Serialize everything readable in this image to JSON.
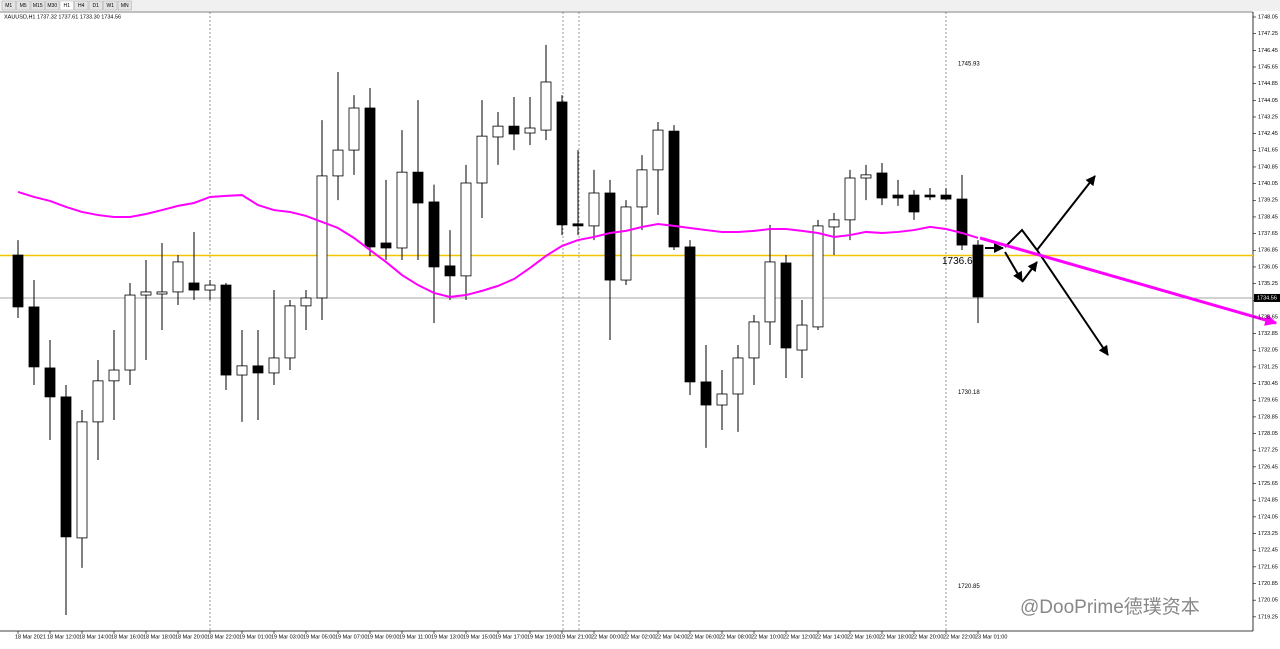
{
  "toolbar": {
    "timeframes": [
      "M1",
      "M5",
      "M15",
      "M30",
      "H1",
      "H4",
      "D1",
      "W1",
      "MN"
    ]
  },
  "header": "XAUUSD,H1  1737.32 1737.61 1733.30 1734.56",
  "watermark": "@DooPrime德璞资本",
  "chart_data": {
    "type": "candlestick",
    "categories": [
      "18 Mar 2021",
      null,
      "18 Mar 12:00",
      null,
      "18 Mar 14:00",
      null,
      "18 Mar 16:00",
      null,
      "18 Mar 18:00",
      null,
      "18 Mar 20:00",
      null,
      "18 Mar 22:00",
      null,
      "19 Mar 01:00",
      null,
      "19 Mar 03:00",
      null,
      "19 Mar 05:00",
      null,
      "19 Mar 07:00",
      null,
      "19 Mar 09:00",
      null,
      "19 Mar 11:00",
      null,
      "19 Mar 13:00",
      null,
      "19 Mar 15:00",
      null,
      "19 Mar 17:00",
      null,
      "19 Mar 19:00",
      null,
      "19 Mar 21:00",
      null,
      "22 Mar 00:00",
      null,
      "22 Mar 02:00",
      null,
      "22 Mar 04:00",
      null,
      "22 Mar 06:00",
      null,
      "22 Mar 08:00",
      null,
      "22 Mar 10:00",
      null,
      "22 Mar 12:00",
      null,
      "22 Mar 14:00",
      null,
      "22 Mar 16:00",
      null,
      "22 Mar 18:00",
      null,
      "22 Mar 20:00",
      null,
      "22 Mar 22:00",
      null,
      "23 Mar 01:00"
    ],
    "open": [
      1736.62,
      1734.13,
      1731.2,
      1729.81,
      1723.04,
      1728.61,
      1730.58,
      1731.1,
      1734.7,
      1734.75,
      1734.85,
      1735.28,
      1734.94,
      1735.18,
      1730.86,
      1731.3,
      1730.96,
      1731.68,
      1734.18,
      1734.56,
      1740.42,
      1741.66,
      1743.68,
      1737.2,
      1736.96,
      1740.6,
      1739.17,
      1736.1,
      1735.62,
      1740.08,
      1742.29,
      1742.81,
      1742.48,
      1742.62,
      1743.97,
      1738.12,
      1738.02,
      1739.6,
      1735.42,
      1738.93,
      1740.71,
      1742.57,
      1737.01,
      1730.53,
      1729.42,
      1729.95,
      1731.68,
      1733.41,
      1736.24,
      1732.06,
      1733.17,
      1737.97,
      1738.31,
      1740.32,
      1740.56,
      1739.5,
      1739.5,
      1739.5,
      1739.5,
      1739.31,
      1737.1
    ],
    "high": [
      1737.34,
      1735.42,
      1732.54,
      1730.38,
      1729.18,
      1731.58,
      1733.02,
      1735.28,
      1736.38,
      1737.2,
      1736.62,
      1737.73,
      1735.42,
      1735.28,
      1733.02,
      1733.02,
      1734.94,
      1734.46,
      1734.94,
      1743.1,
      1745.41,
      1744.3,
      1744.64,
      1740.23,
      1742.62,
      1744.06,
      1740.0,
      1737.82,
      1740.95,
      1744.06,
      1743.49,
      1744.21,
      1744.21,
      1746.71,
      1744.3,
      1741.66,
      1740.71,
      1740.23,
      1739.26,
      1741.42,
      1743.01,
      1742.86,
      1737.34,
      1732.3,
      1731.1,
      1732.3,
      1733.74,
      1738.07,
      1736.62,
      1734.46,
      1738.31,
      1738.64,
      1740.71,
      1740.95,
      1741.04,
      1740.23,
      1739.74,
      1739.84,
      1739.84,
      1740.47,
      1737.34
    ],
    "low": [
      1733.6,
      1730.38,
      1727.74,
      1719.34,
      1721.6,
      1726.78,
      1728.7,
      1730.38,
      1731.58,
      1733.02,
      1734.22,
      1734.46,
      1734.46,
      1730.14,
      1728.61,
      1728.7,
      1730.38,
      1731.1,
      1733.02,
      1733.5,
      1739.26,
      1740.47,
      1736.58,
      1736.38,
      1736.38,
      1736.38,
      1733.36,
      1734.46,
      1734.46,
      1738.4,
      1740.95,
      1741.66,
      1741.9,
      1742.14,
      1737.58,
      1737.58,
      1737.34,
      1732.54,
      1735.18,
      1737.82,
      1738.55,
      1736.86,
      1729.9,
      1727.36,
      1728.22,
      1728.13,
      1730.38,
      1732.3,
      1730.72,
      1730.72,
      1733.02,
      1736.62,
      1737.34,
      1739.26,
      1739.02,
      1738.98,
      1738.31,
      1739.26,
      1739.26,
      1736.86,
      1733.36
    ],
    "close": [
      1734.13,
      1731.25,
      1729.81,
      1723.09,
      1728.61,
      1730.58,
      1731.1,
      1734.7,
      1734.85,
      1734.85,
      1736.29,
      1734.94,
      1735.18,
      1730.86,
      1731.3,
      1730.96,
      1731.68,
      1734.18,
      1734.56,
      1740.42,
      1741.66,
      1743.68,
      1737.01,
      1736.96,
      1740.6,
      1739.12,
      1736.05,
      1735.62,
      1740.08,
      1742.33,
      1742.81,
      1742.43,
      1742.72,
      1744.93,
      1738.07,
      1738.02,
      1739.6,
      1735.42,
      1738.93,
      1740.71,
      1742.62,
      1737.01,
      1730.53,
      1729.42,
      1729.95,
      1731.68,
      1733.41,
      1736.29,
      1732.16,
      1733.26,
      1738.02,
      1738.31,
      1740.32,
      1740.47,
      1739.36,
      1739.36,
      1738.69,
      1739.41,
      1739.31,
      1737.1,
      1734.61
    ],
    "up_color": "#ffffff",
    "down_color": "#000000",
    "overlay_color": "#ff00ff",
    "overlay_values": [
      1739.65,
      1739.41,
      1739.22,
      1738.93,
      1738.69,
      1738.54,
      1738.45,
      1738.45,
      1738.59,
      1738.78,
      1738.98,
      1739.12,
      1739.41,
      1739.46,
      1739.5,
      1739.02,
      1738.78,
      1738.69,
      1738.5,
      1738.21,
      1737.92,
      1737.44,
      1736.86,
      1736.29,
      1735.66,
      1735.18,
      1734.8,
      1734.61,
      1734.7,
      1734.9,
      1735.14,
      1735.47,
      1736.0,
      1736.58,
      1737.06,
      1737.34,
      1737.49,
      1737.68,
      1737.78,
      1737.97,
      1738.11,
      1738.02,
      1737.92,
      1737.82,
      1737.73,
      1737.73,
      1737.78,
      1737.87,
      1737.87,
      1737.78,
      1737.68,
      1737.49,
      1737.58,
      1737.73,
      1737.68,
      1737.73,
      1737.82,
      1737.97,
      1737.87,
      1737.68,
      1737.44
    ],
    "level_line": 1736.6,
    "level_color": "#f5c400",
    "current_price": 1734.56,
    "price_annotations": [
      1745.93,
      1730.18,
      1720.85
    ],
    "ylim": [
      1718.57,
      1748.29
    ],
    "yticks": [
      1748.05,
      1747.25,
      1746.45,
      1745.65,
      1744.85,
      1744.05,
      1743.25,
      1742.45,
      1741.65,
      1740.85,
      1740.05,
      1739.25,
      1738.45,
      1737.65,
      1736.85,
      1736.05,
      1735.25,
      1734.45,
      1733.65,
      1732.85,
      1732.05,
      1731.25,
      1730.45,
      1729.65,
      1728.85,
      1728.05,
      1727.25,
      1726.45,
      1725.65,
      1724.85,
      1724.05,
      1723.25,
      1722.45,
      1721.65,
      1720.85,
      1720.05,
      1719.25
    ]
  }
}
